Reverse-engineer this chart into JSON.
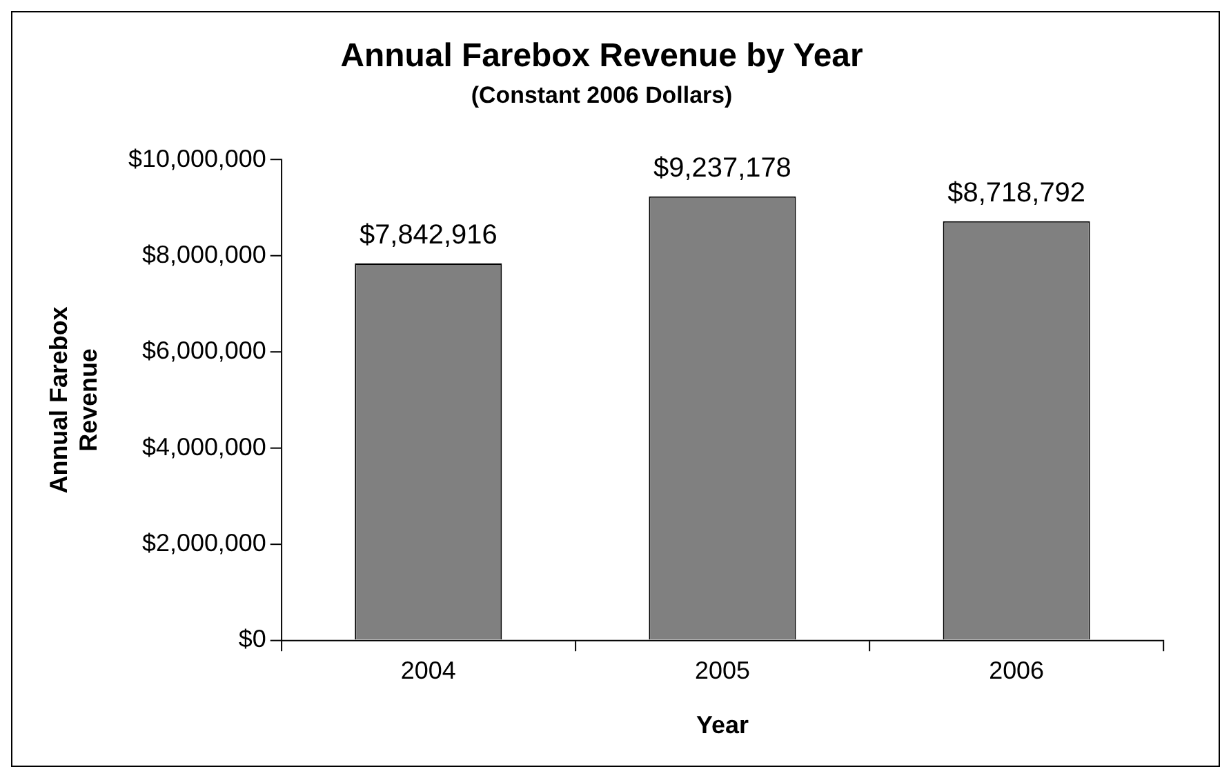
{
  "chart_data": {
    "type": "bar",
    "title": "Annual Farebox Revenue by Year",
    "subtitle": "(Constant 2006 Dollars)",
    "xlabel": "Year",
    "ylabel": "Annual Farebox Revenue",
    "categories": [
      "2004",
      "2005",
      "2006"
    ],
    "series": [
      {
        "color": "#808080",
        "values": [
          7842916,
          9237178,
          8718792
        ],
        "value_labels": [
          "$7,842,916",
          "$9,237,178",
          "$8,718,792"
        ]
      }
    ],
    "ylim": [
      0,
      10000000
    ],
    "yticks": [
      {
        "value": 0,
        "label": "$0"
      },
      {
        "value": 2000000,
        "label": "$2,000,000"
      },
      {
        "value": 4000000,
        "label": "$4,000,000"
      },
      {
        "value": 6000000,
        "label": "$6,000,000"
      },
      {
        "value": 8000000,
        "label": "$8,000,000"
      },
      {
        "value": 10000000,
        "label": "$10,000,000"
      }
    ],
    "grid": false,
    "legend": false
  }
}
